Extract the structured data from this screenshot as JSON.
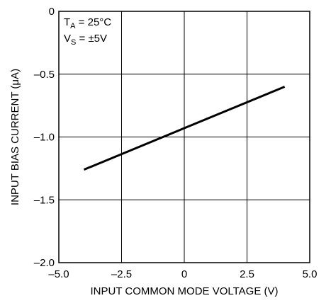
{
  "chart_data": {
    "type": "line",
    "xlabel": "INPUT COMMON MODE VOLTAGE (V)",
    "ylabel_main": "INPUT BIAS CURRENT (",
    "ylabel_mu": "μ",
    "ylabel_tail": "A)",
    "xlim": [
      -5.0,
      5.0
    ],
    "ylim": [
      -2.0,
      0
    ],
    "x_ticks": [
      -5.0,
      -2.5,
      0,
      2.5,
      5.0
    ],
    "x_tick_labels": [
      "–5.0",
      "–2.5",
      "0",
      "2.5",
      "5.0"
    ],
    "y_ticks": [
      0,
      -0.5,
      -1.0,
      -1.5,
      -2.0
    ],
    "y_tick_labels": [
      "0",
      "–0.5",
      "–1.0",
      "–1.5",
      "–2.0"
    ],
    "grid": true,
    "series": [
      {
        "x": [
          -4.0,
          4.0
        ],
        "y": [
          -1.26,
          -0.6
        ]
      }
    ],
    "annotation": {
      "ta_main": "T",
      "ta_sub": "A",
      "ta_value": " = 25°C",
      "vs_main": "V",
      "vs_sub": "S",
      "vs_value": " = ±5V"
    }
  }
}
